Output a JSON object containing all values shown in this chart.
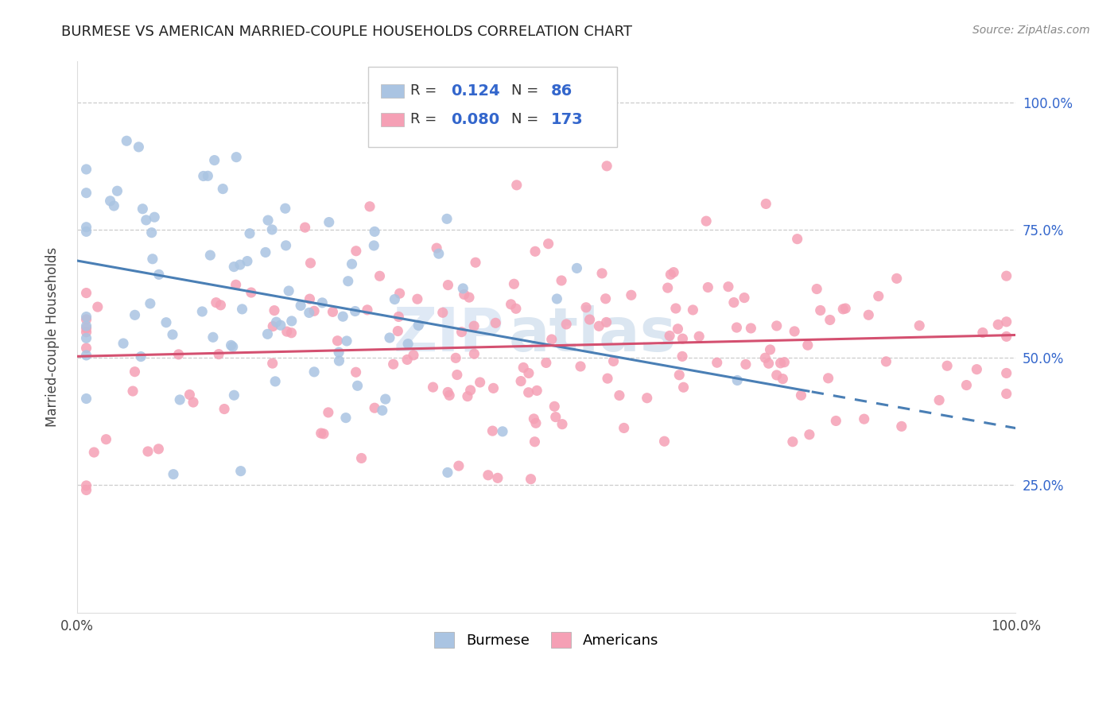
{
  "title": "BURMESE VS AMERICAN MARRIED-COUPLE HOUSEHOLDS CORRELATION CHART",
  "source": "Source: ZipAtlas.com",
  "ylabel": "Married-couple Households",
  "ytick_values": [
    0.25,
    0.5,
    0.75,
    1.0
  ],
  "burmese_color": "#aac4e2",
  "american_color": "#f5a0b5",
  "burmese_line_color": "#4a7fb5",
  "american_line_color": "#d45070",
  "watermark_color": "#c5d8ee",
  "burmese_R": 0.124,
  "american_R": 0.08,
  "burmese_N": 86,
  "american_N": 173,
  "legend_R_color": "#3366cc",
  "legend_N_color": "#3366cc",
  "ytick_color": "#3366cc",
  "title_color": "#222222",
  "source_color": "#888888"
}
